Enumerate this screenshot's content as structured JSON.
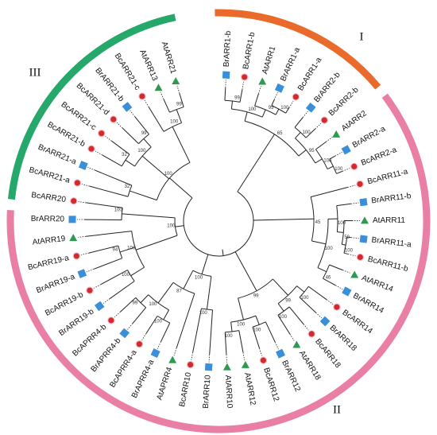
{
  "groups": [
    {
      "id": "I",
      "label": "I",
      "color": "#e96a2b"
    },
    {
      "id": "II",
      "label": "II",
      "color": "#ea7fa6"
    },
    {
      "id": "III",
      "label": "III",
      "color": "#27a86b"
    }
  ],
  "species_colors": {
    "At": "#2e9a4f",
    "Bc": "#d22b2b",
    "Br": "#3a8fd8"
  },
  "leaves": [
    {
      "label": "BrARR1-b",
      "species": "Br"
    },
    {
      "label": "BcARR1-b",
      "species": "Bc"
    },
    {
      "label": "AtARR1",
      "species": "At"
    },
    {
      "label": "BrARR1-a",
      "species": "Br"
    },
    {
      "label": "BcARR1-a",
      "species": "Bc"
    },
    {
      "label": "BrARR2-b",
      "species": "Br"
    },
    {
      "label": "BcARR2-b",
      "species": "Bc"
    },
    {
      "label": "AtARR2",
      "species": "At"
    },
    {
      "label": "BrARR2-a",
      "species": "Br"
    },
    {
      "label": "BcARR2-a",
      "species": "Bc"
    },
    {
      "label": "BcARR11-a",
      "species": "Bc"
    },
    {
      "label": "BrARR11-b",
      "species": "Br"
    },
    {
      "label": "AtARR11",
      "species": "At"
    },
    {
      "label": "BrARR11-a",
      "species": "Br"
    },
    {
      "label": "BcARR11-b",
      "species": "Bc"
    },
    {
      "label": "AtARR14",
      "species": "At"
    },
    {
      "label": "BrARR14",
      "species": "Br"
    },
    {
      "label": "BcARR14",
      "species": "Bc"
    },
    {
      "label": "BrARR18",
      "species": "Br"
    },
    {
      "label": "BcARR18",
      "species": "Bc"
    },
    {
      "label": "AtARR18",
      "species": "At"
    },
    {
      "label": "BrARR12",
      "species": "Br"
    },
    {
      "label": "BcARR12",
      "species": "Bc"
    },
    {
      "label": "AtARR12",
      "species": "At"
    },
    {
      "label": "AtARR10",
      "species": "At"
    },
    {
      "label": "BrARR10",
      "species": "Br"
    },
    {
      "label": "BcARR10",
      "species": "Bc"
    },
    {
      "label": "AtAPRR4",
      "species": "At"
    },
    {
      "label": "BrAPRR4-a",
      "species": "Br"
    },
    {
      "label": "BcAPRR4-a",
      "species": "Bc"
    },
    {
      "label": "BrAPRR4-b",
      "species": "Br"
    },
    {
      "label": "BcAPRR4-b",
      "species": "Bc"
    },
    {
      "label": "BrARR19-b",
      "species": "Br"
    },
    {
      "label": "BcARR19-b",
      "species": "Bc"
    },
    {
      "label": "BrARR19-a",
      "species": "Br"
    },
    {
      "label": "BcARR19-a",
      "species": "Bc"
    },
    {
      "label": "AtARR19",
      "species": "At"
    },
    {
      "label": "BrARR20",
      "species": "Br"
    },
    {
      "label": "BcARR20",
      "species": "Bc"
    },
    {
      "label": "BcARR21-a",
      "species": "Bc"
    },
    {
      "label": "BrARR21-a",
      "species": "Br"
    },
    {
      "label": "BcARR21-b",
      "species": "Bc"
    },
    {
      "label": "BcARR21-c",
      "species": "Bc"
    },
    {
      "label": "BcARR21-d",
      "species": "Bc"
    },
    {
      "label": "BrARR21-b",
      "species": "Br"
    },
    {
      "label": "BcARR21-c",
      "species": "Bc"
    },
    {
      "label": "AtARR13",
      "species": "At"
    },
    {
      "label": "AtARR21",
      "species": "At"
    }
  ],
  "bootstrap_values": [
    "99",
    "100",
    "95",
    "100",
    "100",
    "100",
    "100",
    "95",
    "65",
    "100",
    "50",
    "100",
    "46",
    "100",
    "45",
    "100",
    "100",
    "99",
    "100",
    "100",
    "100",
    "99",
    "100",
    "100",
    "99",
    "100",
    "87",
    "100",
    "100",
    "94",
    "100",
    "100",
    "100",
    "32",
    "32",
    "99",
    "100",
    "99",
    "100",
    "100"
  ]
}
